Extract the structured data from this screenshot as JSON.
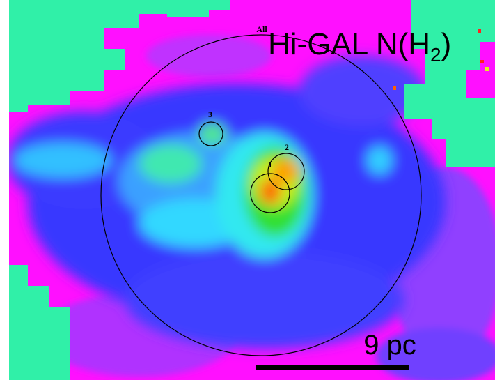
{
  "image": {
    "title": [
      "Hi-GAL N(H",
      "2",
      ")"
    ],
    "region_labels": [
      "All",
      "1",
      "2",
      "3"
    ],
    "scale_label": "9 pc"
  }
}
